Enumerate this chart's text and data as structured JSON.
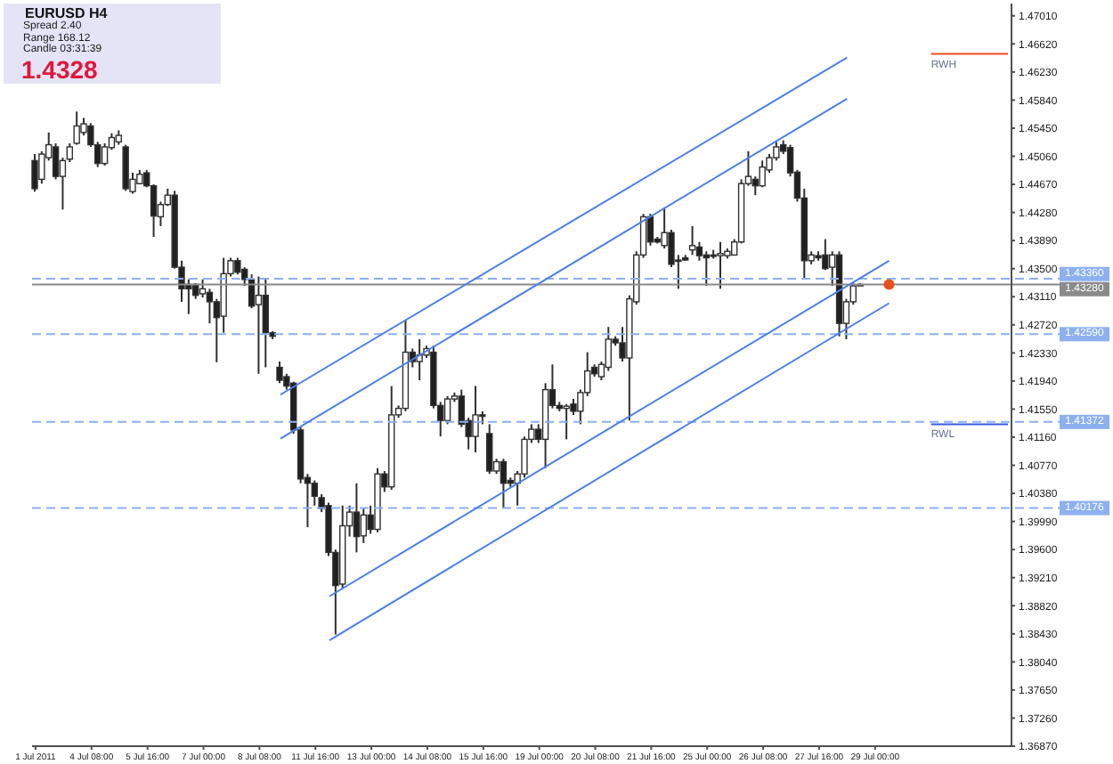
{
  "chart_data": {
    "type": "candlestick",
    "annotations": [
      "EURUSD H4",
      "Spread 2.40",
      "Range 168.12",
      "Candle 03:31:39",
      "1.4328"
    ],
    "categories": [
      "1 Jul 2011",
      null,
      null,
      null,
      null,
      null,
      null,
      null,
      "4 Jul 08:00",
      null,
      null,
      null,
      null,
      null,
      null,
      null,
      "5 Jul 16:00",
      null,
      null,
      null,
      null,
      null,
      null,
      null,
      "7 Jul 00:00",
      null,
      null,
      null,
      null,
      null,
      null,
      null,
      "8 Jul 08:00",
      null,
      null,
      null,
      null,
      null,
      null,
      null,
      "11 Jul 16:00",
      null,
      null,
      null,
      null,
      null,
      null,
      null,
      "13 Jul 00:00",
      null,
      null,
      null,
      null,
      null,
      null,
      null,
      "14 Jul 08:00",
      null,
      null,
      null,
      null,
      null,
      null,
      null,
      "15 Jul 16:00",
      null,
      null,
      null,
      null,
      null,
      null,
      null,
      "19 Jul 00:00",
      null,
      null,
      null,
      null,
      null,
      null,
      null,
      "20 Jul 08:00",
      null,
      null,
      null,
      null,
      null,
      null,
      null,
      "21 Jul 16:00",
      null,
      null,
      null,
      null,
      null,
      null,
      null,
      "25 Jul 00:00",
      null,
      null,
      null,
      null,
      null,
      null,
      null,
      "26 Jul 08:00",
      null,
      null,
      null,
      null,
      null,
      null,
      null,
      "27 Jul 16:00",
      null,
      null,
      null,
      null,
      null,
      null,
      null,
      "29 Jul 00:00",
      null,
      null,
      null,
      null,
      null,
      null,
      null,
      null,
      null,
      null,
      null,
      null,
      null,
      null,
      null,
      null,
      null,
      null,
      null
    ],
    "ohlc": [
      [
        1.45,
        1.4509,
        1.4457,
        1.4461
      ],
      [
        1.4474,
        1.4513,
        1.4468,
        1.4509
      ],
      [
        1.4504,
        1.4539,
        1.45,
        1.4522
      ],
      [
        1.4519,
        1.4524,
        1.4474,
        1.4478
      ],
      [
        1.4478,
        1.4504,
        1.4432,
        1.45
      ],
      [
        1.4502,
        1.4524,
        1.4498,
        1.4519
      ],
      [
        1.4524,
        1.4568,
        1.4522,
        1.4548
      ],
      [
        1.4539,
        1.4559,
        1.4535,
        1.4551
      ],
      [
        1.4548,
        1.4552,
        1.4519,
        1.4522
      ],
      [
        1.4522,
        1.4526,
        1.4491,
        1.4496
      ],
      [
        1.4496,
        1.4524,
        1.4493,
        1.4519
      ],
      [
        1.4518,
        1.4538,
        1.4515,
        1.4532
      ],
      [
        1.4526,
        1.4542,
        1.4522,
        1.4535
      ],
      [
        1.4519,
        1.4522,
        1.4458,
        1.4461
      ],
      [
        1.4457,
        1.4483,
        1.4454,
        1.4474
      ],
      [
        1.4468,
        1.4487,
        1.4467,
        1.4481
      ],
      [
        1.4483,
        1.4487,
        1.4463,
        1.4465
      ],
      [
        1.4465,
        1.4467,
        1.4394,
        1.4423
      ],
      [
        1.4422,
        1.4443,
        1.4409,
        1.4439
      ],
      [
        1.4439,
        1.4461,
        1.4437,
        1.4452
      ],
      [
        1.4452,
        1.4458,
        1.435,
        1.4352
      ],
      [
        1.4352,
        1.4361,
        1.4304,
        1.4322
      ],
      [
        1.4328,
        1.4335,
        1.4287,
        1.4322
      ],
      [
        1.4328,
        1.433,
        1.4308,
        1.4313
      ],
      [
        1.4315,
        1.4335,
        1.431,
        1.4322
      ],
      [
        1.4317,
        1.4322,
        1.4274,
        1.4304
      ],
      [
        1.4304,
        1.4308,
        1.422,
        1.4282
      ],
      [
        1.4284,
        1.4365,
        1.4261,
        1.4343
      ],
      [
        1.4343,
        1.4365,
        1.4339,
        1.4361
      ],
      [
        1.4361,
        1.4365,
        1.4342,
        1.4345
      ],
      [
        1.4349,
        1.4352,
        1.4326,
        1.4335
      ],
      [
        1.4335,
        1.4342,
        1.4295,
        1.4298
      ],
      [
        1.43,
        1.4339,
        1.4204,
        1.4313
      ],
      [
        1.4313,
        1.4335,
        1.4213,
        1.4261
      ],
      [
        1.4261,
        1.4263,
        1.4252,
        1.4256
      ],
      [
        1.4213,
        1.4221,
        1.4191,
        1.4195
      ],
      [
        1.42,
        1.4204,
        1.4182,
        1.4187
      ],
      [
        1.4191,
        1.4193,
        1.4121,
        1.4126
      ],
      [
        1.4126,
        1.413,
        1.4052,
        1.4058
      ],
      [
        1.406,
        1.4065,
        1.3991,
        1.4052
      ],
      [
        1.4052,
        1.4056,
        1.4021,
        1.4034
      ],
      [
        1.4032,
        1.4037,
        1.4012,
        1.4017
      ],
      [
        1.4021,
        1.4025,
        1.3951,
        1.3956
      ],
      [
        1.3956,
        1.396,
        1.3842,
        1.391
      ],
      [
        1.3912,
        1.4021,
        1.3906,
        1.3993
      ],
      [
        1.3993,
        1.4021,
        1.3978,
        1.4012
      ],
      [
        1.4012,
        1.4052,
        1.3956,
        1.3978
      ],
      [
        1.3979,
        1.4017,
        1.3969,
        1.4008
      ],
      [
        1.4008,
        1.4021,
        1.3982,
        1.3988
      ],
      [
        1.3988,
        1.4073,
        1.3984,
        1.4065
      ],
      [
        1.4065,
        1.4069,
        1.404,
        1.4047
      ],
      [
        1.4047,
        1.4187,
        1.4043,
        1.4147
      ],
      [
        1.4147,
        1.416,
        1.4143,
        1.4156
      ],
      [
        1.4156,
        1.4278,
        1.4152,
        1.4234
      ],
      [
        1.4234,
        1.4239,
        1.4213,
        1.4221
      ],
      [
        1.4221,
        1.4252,
        1.4195,
        1.423
      ],
      [
        1.423,
        1.4243,
        1.4226,
        1.4239
      ],
      [
        1.4234,
        1.4243,
        1.4156,
        1.416
      ],
      [
        1.416,
        1.4165,
        1.4117,
        1.4139
      ],
      [
        1.4139,
        1.4173,
        1.4134,
        1.4169
      ],
      [
        1.4169,
        1.4178,
        1.4165,
        1.4173
      ],
      [
        1.4173,
        1.4182,
        1.413,
        1.4134
      ],
      [
        1.4139,
        1.4143,
        1.4099,
        1.4117
      ],
      [
        1.4117,
        1.4187,
        1.4095,
        1.4147
      ],
      [
        1.4147,
        1.4152,
        1.4134,
        1.4145
      ],
      [
        1.4121,
        1.4134,
        1.4065,
        1.4069
      ],
      [
        1.4069,
        1.4086,
        1.4065,
        1.4082
      ],
      [
        1.4082,
        1.4086,
        1.4017,
        1.4052
      ],
      [
        1.4056,
        1.406,
        1.4047,
        1.4052
      ],
      [
        1.4052,
        1.4069,
        1.4021,
        1.4065
      ],
      [
        1.4065,
        1.4117,
        1.406,
        1.4113
      ],
      [
        1.4113,
        1.4134,
        1.4108,
        1.4127
      ],
      [
        1.4127,
        1.4134,
        1.4108,
        1.4113
      ],
      [
        1.4113,
        1.4191,
        1.4073,
        1.4182
      ],
      [
        1.4182,
        1.4217,
        1.4156,
        1.416
      ],
      [
        1.416,
        1.4165,
        1.4152,
        1.4156
      ],
      [
        1.4156,
        1.4162,
        1.4113,
        1.4159
      ],
      [
        1.4162,
        1.4169,
        1.4147,
        1.4152
      ],
      [
        1.4152,
        1.4182,
        1.4134,
        1.4178
      ],
      [
        1.4178,
        1.4234,
        1.4173,
        1.4208
      ],
      [
        1.4213,
        1.4217,
        1.42,
        1.4204
      ],
      [
        1.42,
        1.4221,
        1.4195,
        1.4217
      ],
      [
        1.4213,
        1.4269,
        1.4208,
        1.4252
      ],
      [
        1.4252,
        1.4256,
        1.4243,
        1.4247
      ],
      [
        1.4247,
        1.4269,
        1.4221,
        1.4226
      ],
      [
        1.4226,
        1.4313,
        1.4139,
        1.4308
      ],
      [
        1.4304,
        1.4374,
        1.43,
        1.4369
      ],
      [
        1.4369,
        1.4426,
        1.4365,
        1.4422
      ],
      [
        1.4422,
        1.4426,
        1.4382,
        1.4387
      ],
      [
        1.4391,
        1.4394,
        1.4385,
        1.4387
      ],
      [
        1.4382,
        1.4435,
        1.4378,
        1.44
      ],
      [
        1.44,
        1.4404,
        1.4352,
        1.4356
      ],
      [
        1.4362,
        1.4369,
        1.4322,
        1.4361
      ],
      [
        1.4365,
        1.4369,
        1.4361,
        1.4362
      ],
      [
        1.4376,
        1.4409,
        1.4369,
        1.4382
      ],
      [
        1.438,
        1.4387,
        1.4361,
        1.4368
      ],
      [
        1.4369,
        1.4374,
        1.4326,
        1.4365
      ],
      [
        1.4369,
        1.4376,
        1.4364,
        1.4368
      ],
      [
        1.4368,
        1.4387,
        1.4322,
        1.4371
      ],
      [
        1.4368,
        1.4378,
        1.4364,
        1.4374
      ],
      [
        1.4369,
        1.4391,
        1.4368,
        1.4387
      ],
      [
        1.4387,
        1.4474,
        1.4385,
        1.4468
      ],
      [
        1.4468,
        1.4513,
        1.4465,
        1.4478
      ],
      [
        1.4474,
        1.4478,
        1.4452,
        1.4465
      ],
      [
        1.4465,
        1.45,
        1.4463,
        1.4491
      ],
      [
        1.4487,
        1.4509,
        1.4483,
        1.4504
      ],
      [
        1.4504,
        1.4526,
        1.45,
        1.4519
      ],
      [
        1.4522,
        1.4528,
        1.4509,
        1.4513
      ],
      [
        1.4518,
        1.4522,
        1.4478,
        1.4483
      ],
      [
        1.4484,
        1.4487,
        1.4443,
        1.4448
      ],
      [
        1.4448,
        1.4461,
        1.4335,
        1.4361
      ],
      [
        1.4361,
        1.4374,
        1.4356,
        1.4369
      ],
      [
        1.4368,
        1.4374,
        1.4361,
        1.4365
      ],
      [
        1.4369,
        1.4391,
        1.4348,
        1.435
      ],
      [
        1.4352,
        1.4374,
        1.4326,
        1.4369
      ],
      [
        1.4369,
        1.4374,
        1.4256,
        1.4274
      ],
      [
        1.4274,
        1.4308,
        1.4252,
        1.4304
      ],
      [
        1.4304,
        1.433,
        1.43,
        1.4326
      ],
      [
        1.4326,
        1.433,
        1.4326,
        1.4328
      ],
      null,
      null,
      null,
      null,
      null,
      null,
      null,
      null,
      null,
      null,
      null,
      null,
      null,
      null,
      null,
      null,
      null,
      null,
      null,
      null,
      null
    ],
    "colors": [
      "#202020",
      "#ffffff",
      "#ffffff",
      "#202020",
      "#ffffff",
      "#ffffff",
      "#ffffff",
      "#ffffff",
      "#202020",
      "#202020",
      "#ffffff",
      "#ffffff",
      "#ffffff",
      "#202020",
      "#ffffff",
      "#ffffff",
      "#202020",
      "#202020",
      "#ffffff",
      "#ffffff",
      "#202020",
      "#202020",
      "#202020",
      "#202020",
      "#ffffff",
      "#202020",
      "#202020",
      "#ffffff",
      "#ffffff",
      "#202020",
      "#202020",
      "#202020",
      "#ffffff",
      "#202020",
      "#202020",
      "#202020",
      "#202020",
      "#202020",
      "#202020",
      "#202020",
      "#202020",
      "#202020",
      "#202020",
      "#202020",
      "#ffffff",
      "#ffffff",
      "#202020",
      "#ffffff",
      "#202020",
      "#ffffff",
      "#202020",
      "#ffffff",
      "#ffffff",
      "#ffffff",
      "#202020",
      "#ffffff",
      "#ffffff",
      "#202020",
      "#202020",
      "#ffffff",
      "#ffffff",
      "#202020",
      "#202020",
      "#ffffff",
      "#202020",
      "#202020",
      "#ffffff",
      "#202020",
      "#202020",
      "#ffffff",
      "#ffffff",
      "#ffffff",
      "#202020",
      "#ffffff",
      "#202020",
      "#202020",
      "#ffffff",
      "#202020",
      "#ffffff",
      "#ffffff",
      "#202020",
      "#ffffff",
      "#ffffff",
      "#202020",
      "#202020",
      "#ffffff",
      "#ffffff",
      "#ffffff",
      "#202020",
      "#202020",
      "#ffffff",
      "#202020",
      "#202020",
      "#202020",
      "#ffffff",
      "#202020",
      "#202020",
      "#202020",
      "#ffffff",
      "#ffffff",
      "#ffffff",
      "#ffffff",
      "#ffffff",
      "#202020",
      "#ffffff",
      "#ffffff",
      "#ffffff",
      "#202020",
      "#202020",
      "#202020",
      "#202020",
      "#ffffff",
      "#202020",
      "#202020",
      "#ffffff",
      "#202020",
      "#ffffff",
      "#ffffff",
      "#ffffff",
      null,
      null,
      null,
      null,
      null,
      null,
      null,
      null,
      null,
      null,
      null,
      null,
      null,
      null,
      null,
      null,
      null,
      null,
      null,
      null,
      null
    ],
    "series": [
      {
        "type": "line",
        "color": "#4b7fea",
        "values": [
          null,
          null,
          null,
          null,
          null,
          null,
          null,
          null,
          null,
          null,
          null,
          null,
          null,
          null,
          null,
          null,
          null,
          null,
          null,
          null,
          null,
          null,
          null,
          null,
          null,
          null,
          null,
          null,
          null,
          null,
          null,
          null,
          null,
          null,
          null,
          1.4175,
          null,
          null,
          null,
          null,
          null,
          null,
          null,
          null,
          null,
          null,
          null,
          null,
          null,
          null,
          null,
          null,
          null,
          null,
          null,
          null,
          null,
          null,
          null,
          null,
          null,
          null,
          null,
          null,
          null,
          null,
          null,
          null,
          null,
          null,
          null,
          null,
          null,
          null,
          null,
          null,
          null,
          null,
          null,
          null,
          null,
          null,
          null,
          null,
          null,
          null,
          null,
          null,
          null,
          null,
          null,
          null,
          null,
          null,
          null,
          null,
          null,
          null,
          null,
          null,
          null,
          null,
          null,
          null,
          null,
          null,
          null,
          null,
          null,
          null,
          null,
          null,
          null,
          null,
          null,
          null,
          1.4643,
          null,
          null,
          null,
          null,
          null,
          null,
          null,
          null,
          null,
          null,
          null,
          null,
          null,
          null,
          null,
          null,
          null,
          null,
          null,
          null,
          null,
          null,
          null
        ]
      },
      {
        "type": "line",
        "color": "#4b7fea",
        "values": [
          null,
          null,
          null,
          null,
          null,
          null,
          null,
          null,
          null,
          null,
          null,
          null,
          null,
          null,
          null,
          null,
          null,
          null,
          null,
          null,
          null,
          null,
          null,
          null,
          null,
          null,
          null,
          null,
          null,
          null,
          null,
          null,
          null,
          null,
          null,
          1.4114,
          null,
          null,
          null,
          null,
          null,
          null,
          null,
          null,
          null,
          null,
          null,
          null,
          null,
          null,
          null,
          null,
          null,
          null,
          null,
          null,
          null,
          null,
          null,
          null,
          null,
          null,
          null,
          null,
          null,
          null,
          null,
          null,
          null,
          null,
          null,
          null,
          null,
          null,
          null,
          null,
          null,
          null,
          null,
          null,
          null,
          null,
          null,
          null,
          null,
          null,
          null,
          null,
          null,
          null,
          null,
          null,
          null,
          null,
          null,
          null,
          null,
          null,
          null,
          null,
          null,
          null,
          null,
          null,
          null,
          null,
          null,
          null,
          null,
          null,
          null,
          null,
          null,
          null,
          null,
          null,
          1.4586,
          null,
          null,
          null,
          null,
          null,
          null,
          null,
          null,
          null,
          null,
          null,
          null,
          null,
          null,
          null,
          null,
          null,
          null,
          null,
          null,
          null,
          null,
          null
        ]
      },
      {
        "type": "line",
        "color": "#4b7fea",
        "values": [
          null,
          null,
          null,
          null,
          null,
          null,
          null,
          null,
          null,
          null,
          null,
          null,
          null,
          null,
          null,
          null,
          null,
          null,
          null,
          null,
          null,
          null,
          null,
          null,
          null,
          null,
          null,
          null,
          null,
          null,
          null,
          null,
          null,
          null,
          null,
          null,
          null,
          null,
          null,
          null,
          null,
          null,
          1.3895,
          null,
          null,
          null,
          null,
          null,
          null,
          null,
          null,
          null,
          null,
          null,
          null,
          null,
          null,
          null,
          null,
          null,
          null,
          null,
          null,
          null,
          null,
          null,
          null,
          null,
          null,
          null,
          null,
          null,
          null,
          null,
          null,
          null,
          null,
          null,
          null,
          null,
          null,
          null,
          null,
          null,
          null,
          null,
          null,
          null,
          null,
          null,
          null,
          null,
          null,
          null,
          null,
          null,
          null,
          null,
          null,
          null,
          null,
          null,
          null,
          null,
          null,
          null,
          null,
          null,
          null,
          null,
          null,
          null,
          null,
          null,
          null,
          null,
          null,
          null,
          null,
          null,
          null,
          null,
          1.4361,
          null,
          null,
          null,
          null,
          null,
          null,
          null,
          null,
          null,
          null,
          null,
          null,
          null,
          null,
          null,
          null,
          null
        ]
      },
      {
        "type": "line",
        "color": "#4b7fea",
        "values": [
          null,
          null,
          null,
          null,
          null,
          null,
          null,
          null,
          null,
          null,
          null,
          null,
          null,
          null,
          null,
          null,
          null,
          null,
          null,
          null,
          null,
          null,
          null,
          null,
          null,
          null,
          null,
          null,
          null,
          null,
          null,
          null,
          null,
          null,
          null,
          null,
          null,
          null,
          null,
          null,
          null,
          null,
          1.3834,
          null,
          null,
          null,
          null,
          null,
          null,
          null,
          null,
          null,
          null,
          null,
          null,
          null,
          null,
          null,
          null,
          null,
          null,
          null,
          null,
          null,
          null,
          null,
          null,
          null,
          null,
          null,
          null,
          null,
          null,
          null,
          null,
          null,
          null,
          null,
          null,
          null,
          null,
          null,
          null,
          null,
          null,
          null,
          null,
          null,
          null,
          null,
          null,
          null,
          null,
          null,
          null,
          null,
          null,
          null,
          null,
          null,
          null,
          null,
          null,
          null,
          null,
          null,
          null,
          null,
          null,
          null,
          null,
          null,
          null,
          null,
          null,
          null,
          null,
          null,
          null,
          null,
          null,
          null,
          1.4302,
          null,
          null,
          null,
          null,
          null,
          null,
          null,
          null,
          null,
          null,
          null,
          null,
          null,
          null,
          null,
          null,
          null
        ]
      },
      {
        "type": "line",
        "name": "RWH",
        "color": "#f24b1f",
        "values": [
          null,
          null,
          null,
          null,
          null,
          null,
          null,
          null,
          null,
          null,
          null,
          null,
          null,
          null,
          null,
          null,
          null,
          null,
          null,
          null,
          null,
          null,
          null,
          null,
          null,
          null,
          null,
          null,
          null,
          null,
          null,
          null,
          null,
          null,
          null,
          null,
          null,
          null,
          null,
          null,
          null,
          null,
          null,
          null,
          null,
          null,
          null,
          null,
          null,
          null,
          null,
          null,
          null,
          null,
          null,
          null,
          null,
          null,
          null,
          null,
          null,
          null,
          null,
          null,
          null,
          null,
          null,
          null,
          null,
          null,
          null,
          null,
          null,
          null,
          null,
          null,
          null,
          null,
          null,
          null,
          null,
          null,
          null,
          null,
          null,
          null,
          null,
          null,
          null,
          null,
          null,
          null,
          null,
          null,
          null,
          null,
          null,
          null,
          null,
          null,
          null,
          null,
          null,
          null,
          null,
          null,
          null,
          null,
          null,
          null,
          null,
          null,
          null,
          null,
          null,
          null,
          null,
          null,
          null,
          null,
          null,
          null,
          null,
          null,
          null,
          null,
          null,
          null,
          1.4648,
          null,
          null,
          null,
          null,
          null,
          null,
          null,
          null,
          null,
          null,
          1.4648
        ]
      },
      {
        "type": "line",
        "name": "RWL",
        "color": "#3a5ae6",
        "values": [
          null,
          null,
          null,
          null,
          null,
          null,
          null,
          null,
          null,
          null,
          null,
          null,
          null,
          null,
          null,
          null,
          null,
          null,
          null,
          null,
          null,
          null,
          null,
          null,
          null,
          null,
          null,
          null,
          null,
          null,
          null,
          null,
          null,
          null,
          null,
          null,
          null,
          null,
          null,
          null,
          null,
          null,
          null,
          null,
          null,
          null,
          null,
          null,
          null,
          null,
          null,
          null,
          null,
          null,
          null,
          null,
          null,
          null,
          null,
          null,
          null,
          null,
          null,
          null,
          null,
          null,
          null,
          null,
          null,
          null,
          null,
          null,
          null,
          null,
          null,
          null,
          null,
          null,
          null,
          null,
          null,
          null,
          null,
          null,
          null,
          null,
          null,
          null,
          null,
          null,
          null,
          null,
          null,
          null,
          null,
          null,
          null,
          null,
          null,
          null,
          null,
          null,
          null,
          null,
          null,
          null,
          null,
          null,
          null,
          null,
          null,
          null,
          null,
          null,
          null,
          null,
          null,
          null,
          null,
          null,
          null,
          null,
          null,
          null,
          null,
          null,
          null,
          null,
          1.4134,
          null,
          null,
          null,
          null,
          null,
          null,
          null,
          null,
          null,
          null,
          1.4134
        ]
      },
      {
        "type": "scatter",
        "color": "#e8501e",
        "marker": "circle",
        "values": [
          null,
          null,
          null,
          null,
          null,
          null,
          null,
          null,
          null,
          null,
          null,
          null,
          null,
          null,
          null,
          null,
          null,
          null,
          null,
          null,
          null,
          null,
          null,
          null,
          null,
          null,
          null,
          null,
          null,
          null,
          null,
          null,
          null,
          null,
          null,
          null,
          null,
          null,
          null,
          null,
          null,
          null,
          null,
          null,
          null,
          null,
          null,
          null,
          null,
          null,
          null,
          null,
          null,
          null,
          null,
          null,
          null,
          null,
          null,
          null,
          null,
          null,
          null,
          null,
          null,
          null,
          null,
          null,
          null,
          null,
          null,
          null,
          null,
          null,
          null,
          null,
          null,
          null,
          null,
          null,
          null,
          null,
          null,
          null,
          null,
          null,
          null,
          null,
          null,
          null,
          null,
          null,
          null,
          null,
          null,
          null,
          null,
          null,
          null,
          null,
          null,
          null,
          null,
          null,
          null,
          null,
          null,
          null,
          null,
          null,
          null,
          null,
          null,
          null,
          null,
          null,
          null,
          null,
          null,
          null,
          null,
          null,
          1.4328,
          null,
          null,
          null,
          null,
          null,
          null,
          null,
          null,
          null,
          null,
          null,
          null,
          null,
          null,
          null,
          null,
          null
        ]
      }
    ],
    "ref_lines": [
      {
        "axis": "y",
        "value": 1.4336,
        "label": "1.43360",
        "color": "#8cb0f0",
        "line_style": "dashed"
      },
      {
        "axis": "y",
        "value": 1.4328,
        "label": "1.43280",
        "color": "#8a8a8a",
        "line_style": "solid"
      },
      {
        "axis": "y",
        "value": 1.4259,
        "label": "1.42590",
        "color": "#8cb0f0",
        "line_style": "dashed"
      },
      {
        "axis": "y",
        "value": 1.41372,
        "label": "1.41372",
        "color": "#8cb0f0",
        "line_style": "dashed"
      },
      {
        "axis": "y",
        "value": 1.40176,
        "label": "1.40176",
        "color": "#8cb0f0",
        "line_style": "dashed"
      }
    ],
    "ylim": [
      1.3687,
      1.4718
    ],
    "yticks": [
      {
        "value": 1.3687,
        "label": "1.36870"
      },
      {
        "value": 1.3726,
        "label": "1.37260"
      },
      {
        "value": 1.3765,
        "label": "1.37650"
      },
      {
        "value": 1.3804,
        "label": "1.38040"
      },
      {
        "value": 1.3843,
        "label": "1.38430"
      },
      {
        "value": 1.3882,
        "label": "1.38820"
      },
      {
        "value": 1.3921,
        "label": "1.39210"
      },
      {
        "value": 1.396,
        "label": "1.39600"
      },
      {
        "value": 1.3999,
        "label": "1.39990"
      },
      {
        "value": 1.4038,
        "label": "1.40380"
      },
      {
        "value": 1.4077,
        "label": "1.40770"
      },
      {
        "value": 1.4116,
        "label": "1.41160"
      },
      {
        "value": 1.4155,
        "label": "1.41550"
      },
      {
        "value": 1.4194,
        "label": "1.41940"
      },
      {
        "value": 1.4233,
        "label": "1.42330"
      },
      {
        "value": 1.4272,
        "label": "1.42720"
      },
      {
        "value": 1.4311,
        "label": "1.43110"
      },
      {
        "value": 1.435,
        "label": "1.43500"
      },
      {
        "value": 1.4389,
        "label": "1.43890"
      },
      {
        "value": 1.4428,
        "label": "1.44280"
      },
      {
        "value": 1.4467,
        "label": "1.44670"
      },
      {
        "value": 1.4506,
        "label": "1.45060"
      },
      {
        "value": 1.4545,
        "label": "1.45450"
      },
      {
        "value": 1.4584,
        "label": "1.45840"
      },
      {
        "value": 1.4623,
        "label": "1.46230"
      },
      {
        "value": 1.4662,
        "label": "1.46620"
      },
      {
        "value": 1.4701,
        "label": "1.47010"
      }
    ]
  }
}
